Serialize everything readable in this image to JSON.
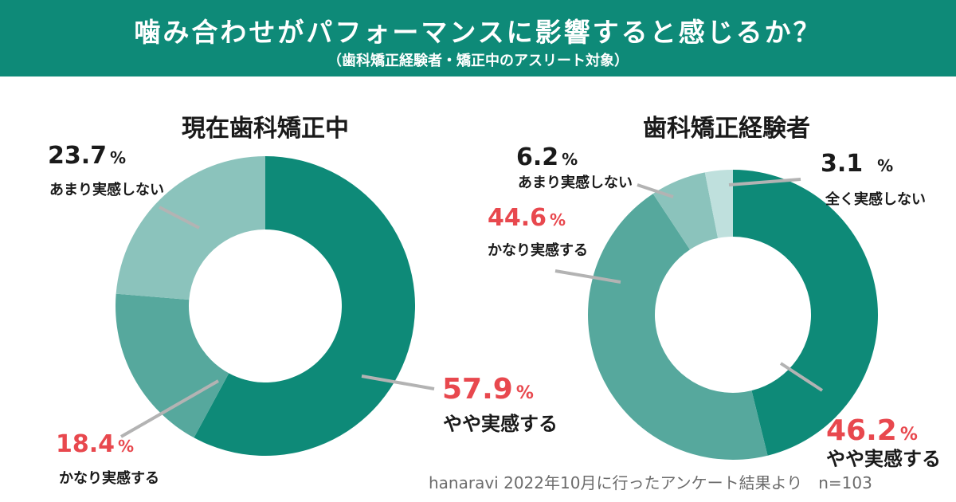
{
  "header": {
    "title": "噛み合わせがパフォーマンスに影響すると感じるか？",
    "subtitle": "（歯科矯正経験者・矯正中のアスリート対象）"
  },
  "unit": "%",
  "colors": {
    "header_bg": "#0e8a78",
    "highlight_text": "#e8484e",
    "default_text": "#1a1a1a",
    "leader_line": "#b3b3b3"
  },
  "chart_data": [
    {
      "type": "pie",
      "title": "現在歯科矯正中",
      "series": [
        {
          "label": "やや実感する",
          "value": 57.9,
          "color": "#0e8a78",
          "highlight": true
        },
        {
          "label": "かなり実感する",
          "value": 18.4,
          "color": "#56a89d",
          "highlight": true
        },
        {
          "label": "あまり実感しない",
          "value": 23.7,
          "color": "#8bc3bc",
          "highlight": false
        }
      ]
    },
    {
      "type": "pie",
      "title": "歯科矯正経験者",
      "series": [
        {
          "label": "やや実感する",
          "value": 46.2,
          "color": "#0e8a78",
          "highlight": true
        },
        {
          "label": "かなり実感する",
          "value": 44.6,
          "color": "#56a89d",
          "highlight": true
        },
        {
          "label": "あまり実感しない",
          "value": 6.2,
          "color": "#8bc3bc",
          "highlight": false
        },
        {
          "label": "全く実感しない",
          "value": 3.1,
          "color": "#bfe0dd",
          "highlight": false
        }
      ]
    }
  ],
  "footer": {
    "source": "hanaravi 2022年10月に行ったアンケート結果より　n=103"
  }
}
